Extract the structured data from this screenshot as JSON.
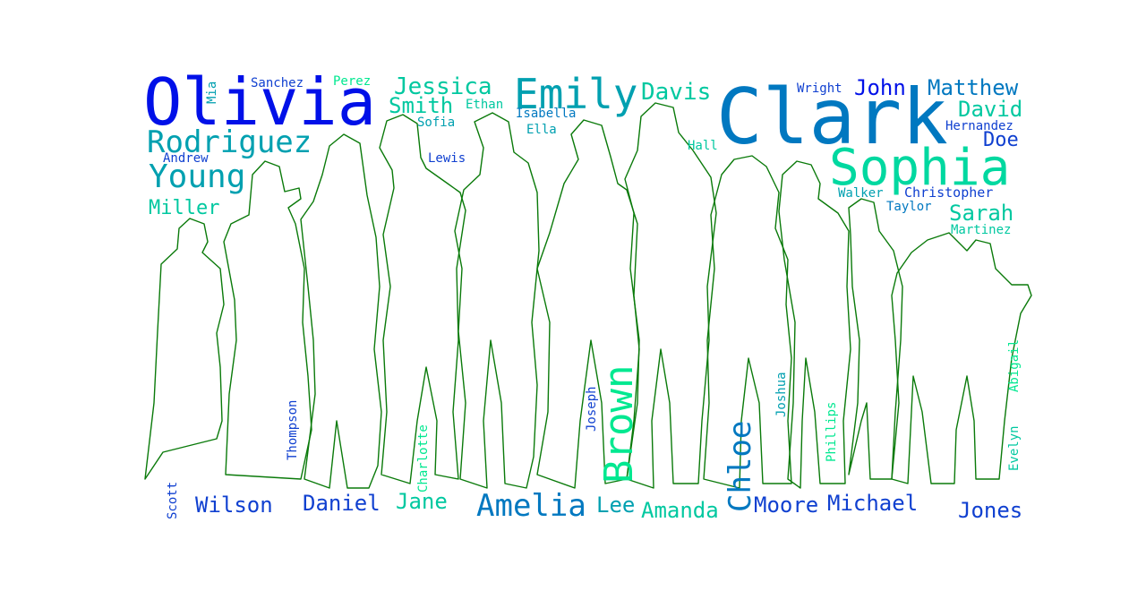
{
  "words": {
    "olivia": "Olivia",
    "clark": "Clark",
    "sophia": "Sophia",
    "emily": "Emily",
    "brown": "Brown",
    "rodriguez": "Rodriguez",
    "young": "Young",
    "amelia": "Amelia",
    "chloe": "Chloe",
    "jessica": "Jessica",
    "smith": "Smith",
    "davis": "Davis",
    "matthew": "Matthew",
    "john": "John",
    "david": "David",
    "sarah": "Sarah",
    "miller": "Miller",
    "daniel": "Daniel",
    "wilson": "Wilson",
    "jane": "Jane",
    "amanda": "Amanda",
    "lee": "Lee",
    "moore": "Moore",
    "michael": "Michael",
    "jones": "Jones",
    "doe": "Doe",
    "hernandez": "Hernandez",
    "christopher": "Christopher",
    "walker": "Walker",
    "taylor": "Taylor",
    "martinez": "Martinez",
    "wright": "Wright",
    "hall": "Hall",
    "sanchez": "Sanchez",
    "perez": "Perez",
    "mia": "Mia",
    "andrew": "Andrew",
    "sofia": "Sofia",
    "ethan": "Ethan",
    "isabella": "Isabella",
    "ella": "Ella",
    "lewis": "Lewis",
    "thompson": "Thompson",
    "charlotte": "Charlotte",
    "joseph": "Joseph",
    "joshua": "Joshua",
    "phillips": "Phillips",
    "abigail": "Abigail",
    "evelyn": "Evelyn",
    "scott": "Scott"
  },
  "colors": {
    "outline": "#0a7a0a",
    "palette": [
      "#0010e8",
      "#0078c0",
      "#00c8a0",
      "#1040d0",
      "#00a0b0",
      "#00e890"
    ]
  }
}
